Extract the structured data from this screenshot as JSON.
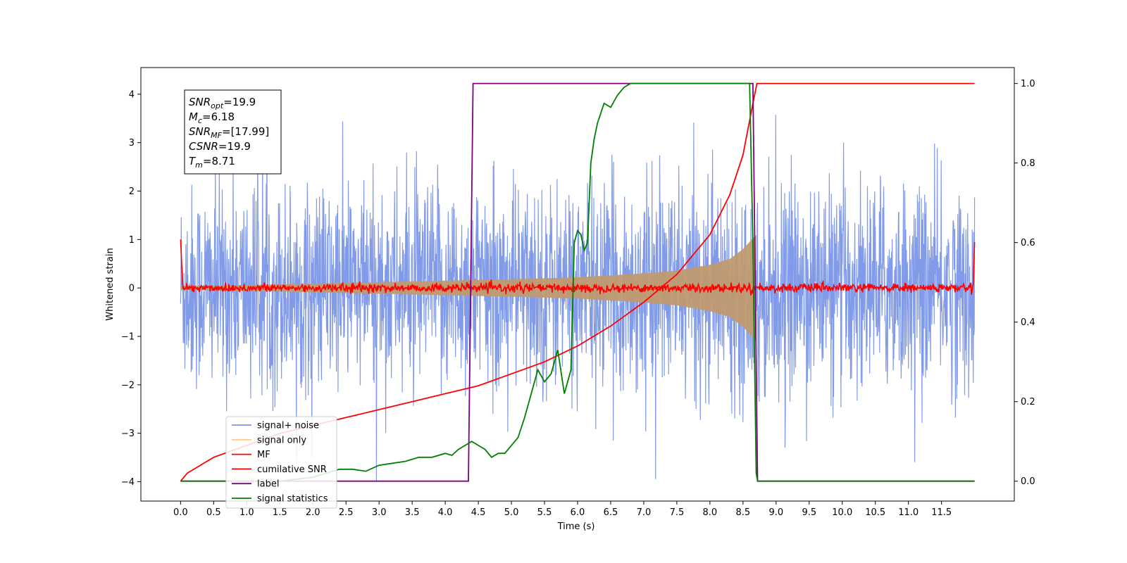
{
  "chart_data": {
    "type": "line",
    "xlabel": "Time (s)",
    "ylabel": "Whitened strain",
    "xlim": [
      -0.6,
      12.6
    ],
    "ylim": [
      -4.4,
      4.55
    ],
    "y2lim": [
      -0.05,
      1.04
    ],
    "x_ticks": [
      "0.0",
      "0.5",
      "1.0",
      "1.5",
      "2.0",
      "2.5",
      "3.0",
      "3.5",
      "4.0",
      "4.5",
      "5.0",
      "5.5",
      "6.0",
      "6.5",
      "7.0",
      "7.5",
      "8.0",
      "8.5",
      "9.0",
      "9.5",
      "10.0",
      "10.5",
      "11.0",
      "11.5"
    ],
    "y_ticks": [
      "-4",
      "-3",
      "-2",
      "-1",
      "0",
      "1",
      "2",
      "3",
      "4"
    ],
    "y2_ticks": [
      "0.0",
      "0.2",
      "0.4",
      "0.6",
      "0.8",
      "1.0"
    ],
    "grid": false,
    "legend": {
      "position": "lower-left",
      "entries": [
        {
          "label": "signal+ noise",
          "color": "#7b96e8"
        },
        {
          "label": "signal only",
          "color": "#ffcc80"
        },
        {
          "label": "MF",
          "color": "#ff0000"
        },
        {
          "label": "cumilative SNR",
          "color": "#ff0000"
        },
        {
          "label": "label",
          "color": "#800080"
        },
        {
          "label": "signal statistics",
          "color": "#008000"
        }
      ]
    },
    "annotation": [
      {
        "base": "SNR",
        "sub": "opt",
        "value": "=19.9"
      },
      {
        "base": "M",
        "sub": "c",
        "value": "=6.18"
      },
      {
        "base": "SNR",
        "sub": "MF",
        "value": "=[17.99]"
      },
      {
        "base": "CSNR",
        "sub": "",
        "value": "=19.9"
      },
      {
        "base": "T",
        "sub": "m",
        "value": "=8.71"
      }
    ],
    "series": [
      {
        "name": "signal+ noise",
        "axis": "left",
        "color": "#7b96e8",
        "description": "noise band roughly -2.4 to 2.4, spikes to about 4 and -4",
        "x_range": [
          0.0,
          12.0
        ]
      },
      {
        "name": "signal only",
        "axis": "left",
        "color": "#c09a70",
        "envelope": {
          "x": [
            0,
            1,
            2,
            3,
            4,
            5,
            6,
            6.5,
            7,
            7.5,
            8,
            8.3,
            8.5,
            8.6,
            8.7
          ],
          "amp": [
            0.04,
            0.06,
            0.09,
            0.12,
            0.15,
            0.18,
            0.22,
            0.26,
            0.3,
            0.36,
            0.48,
            0.6,
            0.8,
            0.95,
            1.1
          ]
        }
      },
      {
        "name": "MF",
        "axis": "left",
        "color": "#ff0000",
        "description": "around 0 with noise of about 0.1, endpoints near 1.0"
      },
      {
        "name": "cumilative SNR",
        "axis": "right",
        "color": "#ff0000",
        "x": [
          0.0,
          0.1,
          0.5,
          1.0,
          1.5,
          2.0,
          2.5,
          3.0,
          3.5,
          4.0,
          4.5,
          5.0,
          5.5,
          6.0,
          6.5,
          7.0,
          7.5,
          8.0,
          8.3,
          8.5,
          8.65,
          8.71,
          12.0
        ],
        "y": [
          0.0,
          0.02,
          0.06,
          0.09,
          0.12,
          0.14,
          0.16,
          0.18,
          0.2,
          0.22,
          0.24,
          0.27,
          0.3,
          0.34,
          0.39,
          0.45,
          0.52,
          0.62,
          0.72,
          0.82,
          0.95,
          1.0,
          1.0
        ]
      },
      {
        "name": "label",
        "axis": "right",
        "color": "#800080",
        "x": [
          0.0,
          4.35,
          4.42,
          8.65,
          8.72,
          12.0
        ],
        "y": [
          0,
          0,
          1,
          1,
          0,
          0
        ]
      },
      {
        "name": "signal statistics",
        "axis": "right",
        "color": "#008000",
        "x": [
          0.0,
          0.5,
          1.0,
          1.5,
          2.0,
          2.2,
          2.4,
          2.6,
          2.8,
          3.0,
          3.2,
          3.4,
          3.6,
          3.8,
          4.0,
          4.1,
          4.2,
          4.3,
          4.4,
          4.5,
          4.6,
          4.7,
          4.8,
          4.9,
          5.0,
          5.1,
          5.2,
          5.3,
          5.4,
          5.5,
          5.6,
          5.7,
          5.8,
          5.9,
          5.95,
          6.0,
          6.05,
          6.1,
          6.15,
          6.2,
          6.25,
          6.3,
          6.4,
          6.5,
          6.6,
          6.7,
          6.8,
          7.0,
          7.5,
          8.0,
          8.4,
          8.55,
          8.6,
          8.65,
          8.7,
          8.72,
          12.0
        ],
        "y": [
          0.0,
          0.0,
          0.0,
          0.0,
          0.01,
          0.02,
          0.03,
          0.03,
          0.025,
          0.04,
          0.045,
          0.05,
          0.06,
          0.06,
          0.07,
          0.065,
          0.08,
          0.09,
          0.1,
          0.09,
          0.08,
          0.06,
          0.07,
          0.07,
          0.09,
          0.11,
          0.16,
          0.22,
          0.28,
          0.25,
          0.27,
          0.33,
          0.22,
          0.28,
          0.6,
          0.63,
          0.62,
          0.58,
          0.6,
          0.8,
          0.86,
          0.9,
          0.95,
          0.94,
          0.97,
          0.99,
          1.0,
          1.0,
          1.0,
          1.0,
          1.0,
          1.0,
          1.0,
          0.6,
          0.02,
          0.0,
          0.0
        ]
      }
    ]
  }
}
